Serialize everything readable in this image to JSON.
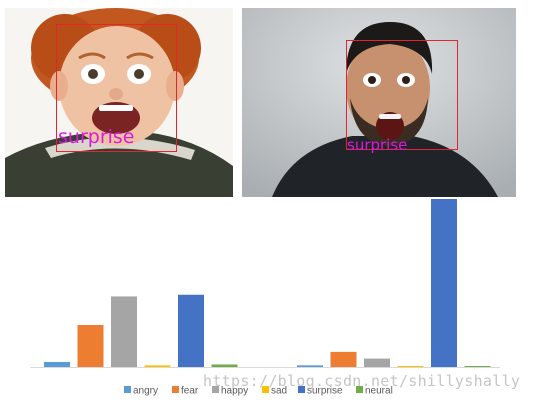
{
  "photos": [
    {
      "name": "boy",
      "face_label": "surprise",
      "box_color": "#e3262e",
      "label_color": "#d81adc"
    },
    {
      "name": "man",
      "face_label": "surprise",
      "box_color": "#e3262e",
      "label_color": "#d81adc"
    }
  ],
  "chart_data": {
    "type": "bar",
    "title": "",
    "xlabel": "",
    "ylabel": "",
    "categories": [
      "",
      ""
    ],
    "ylim": [
      0,
      1
    ],
    "grid": false,
    "legend_position": "bottom",
    "series": [
      {
        "name": "angry",
        "color": "#5b9bd5",
        "values": [
          0.03,
          0.01
        ]
      },
      {
        "name": "fear",
        "color": "#ed7d31",
        "values": [
          0.25,
          0.09
        ]
      },
      {
        "name": "happy",
        "color": "#a5a5a5",
        "values": [
          0.42,
          0.05
        ]
      },
      {
        "name": "sad",
        "color": "#ffc000",
        "values": [
          0.01,
          0.005
        ]
      },
      {
        "name": "surprise",
        "color": "#4472c4",
        "values": [
          0.43,
          1.0
        ]
      },
      {
        "name": "neural",
        "color": "#70ad47",
        "values": [
          0.015,
          0.005
        ]
      }
    ]
  },
  "watermark": "https://blog.csdn.net/shillyshally"
}
